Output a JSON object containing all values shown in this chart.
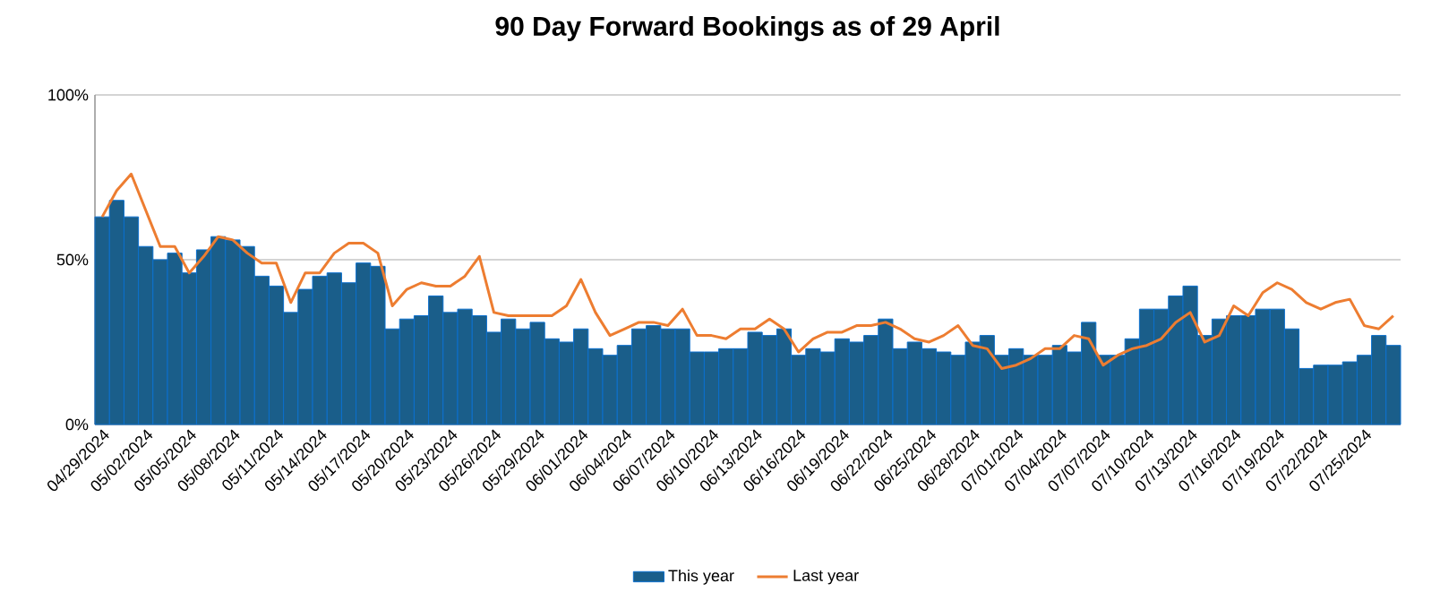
{
  "chart_data": {
    "type": "bar",
    "title": "90 Day Forward Bookings as of 29 April",
    "categories": [
      "04/29/2024",
      null,
      null,
      "05/02/2024",
      null,
      null,
      "05/05/2024",
      null,
      null,
      "05/08/2024",
      null,
      null,
      "05/11/2024",
      null,
      null,
      "05/14/2024",
      null,
      null,
      "05/17/2024",
      null,
      null,
      "05/20/2024",
      null,
      null,
      "05/23/2024",
      null,
      null,
      "05/26/2024",
      null,
      null,
      "05/29/2024",
      null,
      null,
      "06/01/2024",
      null,
      null,
      "06/04/2024",
      null,
      null,
      "06/07/2024",
      null,
      null,
      "06/10/2024",
      null,
      null,
      "06/13/2024",
      null,
      null,
      "06/16/2024",
      null,
      null,
      "06/19/2024",
      null,
      null,
      "06/22/2024",
      null,
      null,
      "06/25/2024",
      null,
      null,
      "06/28/2024",
      null,
      null,
      "07/01/2024",
      null,
      null,
      "07/04/2024",
      null,
      null,
      "07/07/2024",
      null,
      null,
      "07/10/2024",
      null,
      null,
      "07/13/2024",
      null,
      null,
      "07/16/2024",
      null,
      null,
      "07/19/2024",
      null,
      null,
      "07/22/2024",
      null,
      null,
      "07/25/2024",
      null,
      null
    ],
    "series": [
      {
        "name": "This year",
        "color": "#1a5e8a",
        "values": [
          63,
          68,
          63,
          54,
          50,
          52,
          46,
          53,
          57,
          56,
          54,
          45,
          42,
          34,
          41,
          45,
          46,
          43,
          49,
          48,
          29,
          32,
          33,
          39,
          34,
          35,
          33,
          28,
          32,
          29,
          31,
          26,
          25,
          29,
          23,
          21,
          24,
          29,
          30,
          29,
          29,
          22,
          22,
          23,
          23,
          28,
          27,
          29,
          21,
          23,
          22,
          26,
          25,
          27,
          32,
          23,
          25,
          23,
          22,
          21,
          25,
          27,
          21,
          23,
          21,
          21,
          24,
          22,
          31,
          21,
          21,
          26,
          35,
          35,
          39,
          42,
          27,
          32,
          33,
          33,
          35,
          35,
          29,
          17,
          18,
          18,
          19,
          21,
          27,
          24
        ]
      },
      {
        "name": "Last year",
        "type": "line",
        "color": "#ed7d31",
        "values": [
          63,
          71,
          76,
          65,
          54,
          54,
          46,
          51,
          57,
          56,
          52,
          49,
          49,
          37,
          46,
          46,
          52,
          55,
          55,
          52,
          36,
          41,
          43,
          42,
          42,
          45,
          51,
          34,
          33,
          33,
          33,
          33,
          36,
          44,
          34,
          27,
          29,
          31,
          31,
          30,
          35,
          27,
          27,
          26,
          29,
          29,
          32,
          29,
          22,
          26,
          28,
          28,
          30,
          30,
          31,
          29,
          26,
          25,
          27,
          30,
          24,
          23,
          17,
          18,
          20,
          23,
          23,
          27,
          26,
          18,
          21,
          23,
          24,
          26,
          31,
          34,
          25,
          27,
          36,
          33,
          40,
          43,
          41,
          37,
          35,
          37,
          38,
          30,
          29,
          33
        ]
      }
    ],
    "ylim": [
      0,
      100
    ],
    "yticks": [
      {
        "value": 0,
        "label": "0%"
      },
      {
        "value": 50,
        "label": "50%"
      },
      {
        "value": 100,
        "label": "100%"
      }
    ],
    "grid": "y",
    "legend": "bottom"
  }
}
